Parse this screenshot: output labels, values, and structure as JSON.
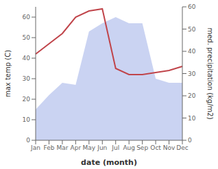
{
  "chart_data": {
    "type": "line",
    "xlabel": "date (month)",
    "ylabel": "max temp (C)",
    "y2label": "med. precipitation (kg/m2)",
    "categories": [
      "Jan",
      "Feb",
      "Mar",
      "Apr",
      "May",
      "Jun",
      "Jul",
      "Aug",
      "Sep",
      "Oct",
      "Nov",
      "Dec"
    ],
    "series": [
      {
        "type": "area",
        "color": "#b8c4ee",
        "values": [
          15,
          22,
          28,
          27,
          53,
          57,
          60,
          57,
          57,
          30,
          28,
          28
        ]
      },
      {
        "type": "line",
        "color": "#c0444a",
        "values": [
          42,
          47,
          52,
          60,
          63,
          64,
          35,
          32,
          32,
          33,
          34,
          36
        ]
      }
    ],
    "ylim": [
      0,
      65
    ],
    "yticks": [
      0,
      10,
      20,
      30,
      40,
      50,
      60
    ],
    "y2lim": [
      0,
      60
    ],
    "y2ticks": [
      0,
      10,
      20,
      30,
      40,
      50,
      60
    ],
    "grid": false
  }
}
